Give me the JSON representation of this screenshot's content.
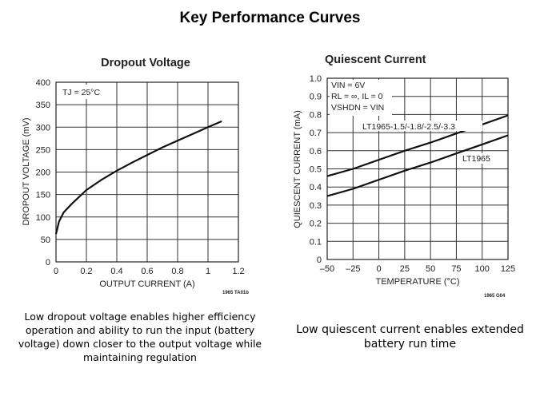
{
  "slide_title": "Key Performance Curves",
  "chart_data": [
    {
      "type": "line",
      "title": "Dropout Voltage",
      "xlabel": "OUTPUT CURRENT (A)",
      "ylabel": "DROPOUT VOLTAGE (mV)",
      "xlim": [
        0,
        1.2
      ],
      "ylim": [
        0,
        400
      ],
      "xticks": [
        "0",
        "0.2",
        "0.4",
        "0.6",
        "0.8",
        "1",
        "1.2"
      ],
      "yticks": [
        "0",
        "50",
        "100",
        "150",
        "200",
        "250",
        "300",
        "350",
        "400"
      ],
      "grid": true,
      "annotation": "TJ = 25°C",
      "figure_code": "1965 TA01b",
      "series": [
        {
          "name": "Dropout",
          "x": [
            0,
            0.02,
            0.05,
            0.1,
            0.2,
            0.3,
            0.4,
            0.5,
            0.6,
            0.7,
            0.8,
            0.9,
            1.0,
            1.09
          ],
          "y": [
            62,
            90,
            110,
            128,
            160,
            183,
            203,
            221,
            238,
            255,
            270,
            285,
            300,
            313
          ]
        }
      ]
    },
    {
      "type": "line",
      "title": "Quiescent Current",
      "xlabel": "TEMPERATURE (°C)",
      "ylabel": "QUIESCENT CURRENT (mA)",
      "xlim": [
        -50,
        125
      ],
      "ylim": [
        0,
        1.0
      ],
      "xticks": [
        "–50",
        "–25",
        "0",
        "25",
        "50",
        "75",
        "100",
        "125"
      ],
      "yticks": [
        "0",
        "0.1",
        "0.2",
        "0.3",
        "0.4",
        "0.5",
        "0.6",
        "0.7",
        "0.8",
        "0.9",
        "1.0"
      ],
      "grid": true,
      "conditions": [
        "VIN = 6V",
        "RL = ∞, IL = 0",
        "VSHDN = VIN"
      ],
      "figure_code": "1965 G04",
      "series": [
        {
          "name": "LT1965-1.5/-1.8/-2.5/-3.3",
          "x": [
            -50,
            -25,
            0,
            25,
            50,
            75,
            100,
            125
          ],
          "y": [
            0.46,
            0.5,
            0.55,
            0.6,
            0.645,
            0.695,
            0.745,
            0.795
          ]
        },
        {
          "name": "LT1965",
          "x": [
            -50,
            -25,
            0,
            25,
            50,
            75,
            100,
            125
          ],
          "y": [
            0.35,
            0.39,
            0.44,
            0.49,
            0.535,
            0.585,
            0.635,
            0.685
          ]
        }
      ]
    }
  ],
  "captions": {
    "left": "Low dropout voltage enables higher efficiency operation and ability to run the input (battery voltage) down closer to the output voltage while maintaining  regulation",
    "right": "Low quiescent current enables extended battery run time"
  }
}
